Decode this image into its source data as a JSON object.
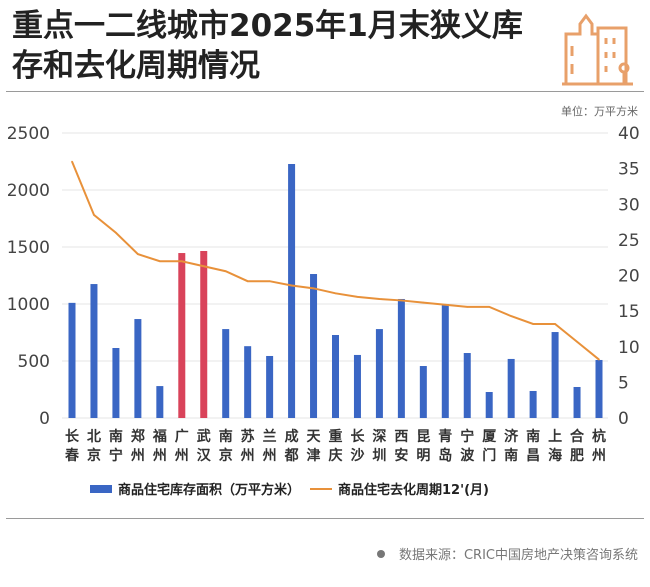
{
  "header": {
    "title": "重点一二线城市2025年1月末狭义库存和去化周期情况",
    "unit": "单位：万平方米",
    "icon": "city-buildings-icon"
  },
  "chart_data": {
    "type": "bar+line",
    "categories": [
      "长春",
      "北京",
      "南宁",
      "郑州",
      "福州",
      "广州",
      "武汉",
      "南京",
      "苏州",
      "兰州",
      "成都",
      "天津",
      "重庆",
      "长沙",
      "深圳",
      "西安",
      "昆明",
      "青岛",
      "宁波",
      "厦门",
      "济南",
      "南昌",
      "上海",
      "合肥",
      "杭州"
    ],
    "series": [
      {
        "name": "商品住宅库存面积（万平方米）",
        "type": "bar",
        "axis": "left",
        "color": "#3a66c4",
        "highlight_color": "#d9435a",
        "highlight": [
          "广州",
          "武汉"
        ],
        "values": [
          1010,
          1175,
          614,
          868,
          280,
          1447,
          1465,
          780,
          630,
          544,
          2228,
          1263,
          728,
          553,
          780,
          1044,
          456,
          1000,
          570,
          228,
          518,
          237,
          754,
          272,
          509
        ]
      },
      {
        "name": "商品住宅去化周期12'(月)",
        "type": "line",
        "axis": "right",
        "color": "#e8913a",
        "values": [
          36,
          28.5,
          26,
          23,
          22,
          22,
          21.3,
          20.6,
          19.2,
          19.2,
          18.6,
          18.2,
          17.5,
          17,
          16.7,
          16.5,
          16.2,
          15.9,
          15.6,
          15.6,
          14.3,
          13.2,
          13.2,
          10.7,
          8.2
        ]
      }
    ],
    "ylim_left": [
      0,
      2500
    ],
    "yticks_left": [
      "0",
      "500",
      "1000",
      "1500",
      "2000",
      "2500"
    ],
    "ylim_right": [
      0,
      40
    ],
    "yticks_right": [
      "0",
      "5",
      "10",
      "15",
      "20",
      "25",
      "30",
      "35",
      "40"
    ],
    "grid": true,
    "legend": "bottom"
  },
  "footer": {
    "source": "数据来源：CRIC中国房地产决策咨询系统"
  }
}
